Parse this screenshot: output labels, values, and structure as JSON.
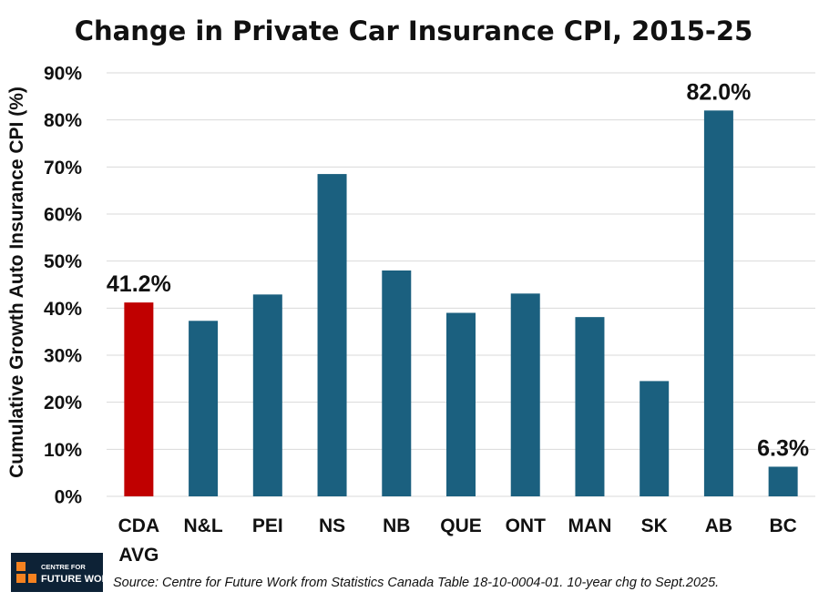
{
  "chart_data": {
    "type": "bar",
    "title": "Change in Private Car Insurance CPI, 2015-25",
    "ylabel": "Cumulative Growth Auto Insurance CPI (%)",
    "xlabel": "",
    "categories": [
      [
        "CDA",
        "AVG"
      ],
      [
        "N&L"
      ],
      [
        "PEI"
      ],
      [
        "NS"
      ],
      [
        "NB"
      ],
      [
        "QUE"
      ],
      [
        "ONT"
      ],
      [
        "MAN"
      ],
      [
        "SK"
      ],
      [
        "AB"
      ],
      [
        "BC"
      ]
    ],
    "values": [
      41.2,
      37.3,
      42.9,
      68.5,
      48.0,
      39.0,
      43.1,
      38.1,
      24.5,
      82.0,
      6.3
    ],
    "unit": "%",
    "ylim": [
      0,
      90
    ],
    "yticks": [
      0,
      10,
      20,
      30,
      40,
      50,
      60,
      70,
      80,
      90
    ],
    "ytick_labels": [
      "0%",
      "10%",
      "20%",
      "30%",
      "40%",
      "50%",
      "60%",
      "70%",
      "80%",
      "90%"
    ],
    "data_labels": [
      {
        "index": 0,
        "text": "41.2%"
      },
      {
        "index": 9,
        "text": "82.0%"
      },
      {
        "index": 10,
        "text": "6.3%"
      }
    ],
    "colors": {
      "bar": "#1b607f",
      "highlight": "#c00000",
      "gridline": "#d9d9d9"
    },
    "highlight_index": 0,
    "grid": true,
    "legend": "none"
  },
  "source": "Source: Centre for Future Work from Statistics Canada Table 18-10-0004-01. 10-year chg to Sept.2025.",
  "logo": {
    "line1": "CENTRE FOR",
    "line2": "FUTURE WORK",
    "background": "#0d2236",
    "accent": "#f58220"
  }
}
